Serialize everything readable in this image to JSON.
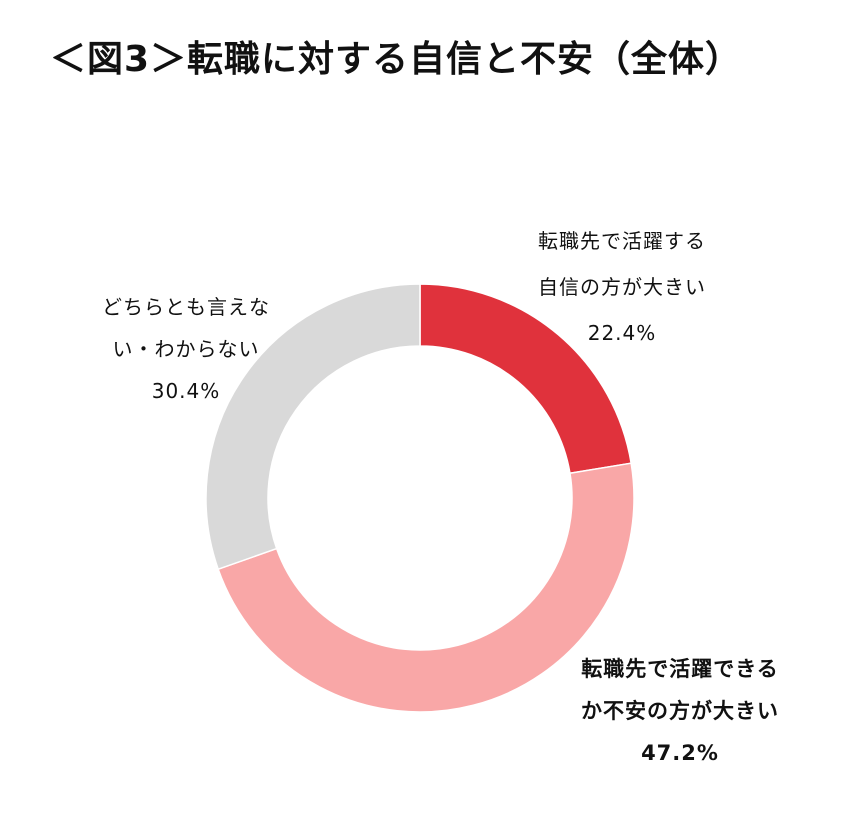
{
  "title": "＜図3＞転職に対する自信と不安（全体）",
  "chart_data": {
    "type": "pie",
    "style": "donut",
    "title": "＜図3＞転職に対する自信と不安（全体）",
    "slices": [
      {
        "label_lines": [
          "転職先で活躍する",
          "自信の方が大きい"
        ],
        "value": 22.4,
        "value_label": "22.4%",
        "color": "#e0323c",
        "bold": false
      },
      {
        "label_lines": [
          "転職先で活躍できる",
          "か不安の方が大きい"
        ],
        "value": 47.2,
        "value_label": "47.2%",
        "color": "#f9a7a7",
        "bold": true
      },
      {
        "label_lines": [
          "どちらとも言えな",
          "い・わからない"
        ],
        "value": 30.4,
        "value_label": "30.4%",
        "color": "#d9d9d9",
        "bold": false
      }
    ]
  }
}
